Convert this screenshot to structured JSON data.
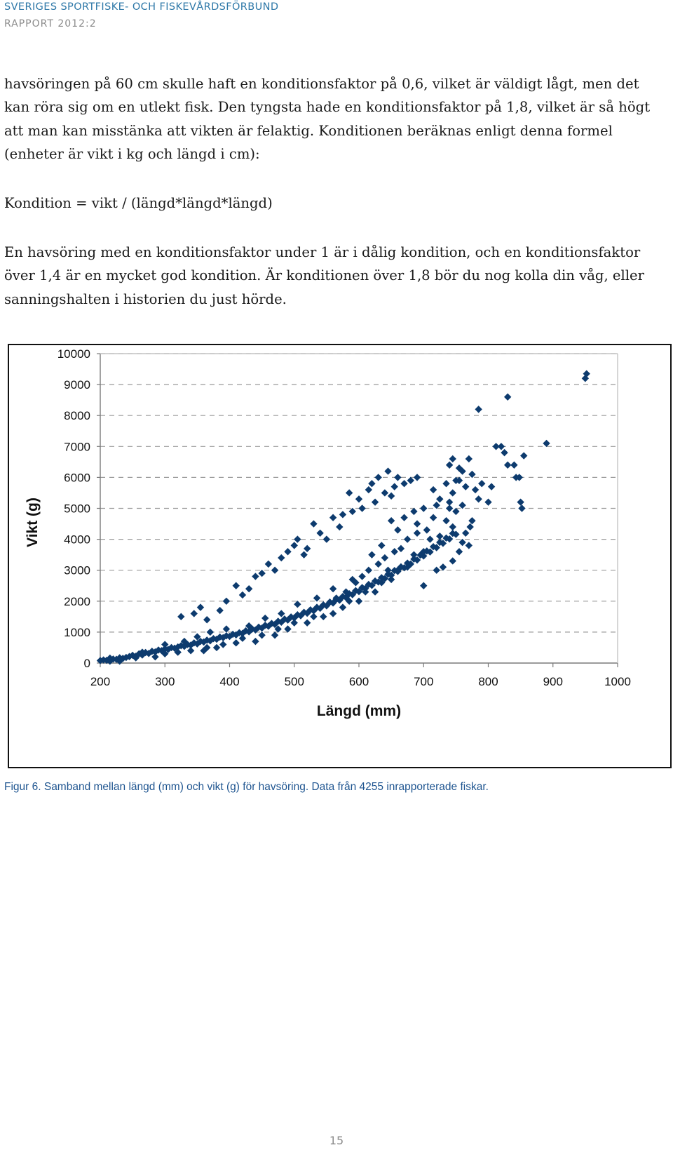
{
  "header": {
    "organization": "SVERIGES SPORTFISKE- OCH FISKEVÅRDSFÖRBUND",
    "report": "RAPPORT 2012:2"
  },
  "body": {
    "paragraph1": "havsöringen på 60 cm skulle haft en konditionsfaktor på 0,6, vilket är väldigt lågt, men det kan röra sig om en utlekt fisk. Den tyngsta hade en konditionsfaktor på 1,8, vilket är så högt att man kan misstänka att vikten är felaktig. Konditionen beräknas enligt denna formel (enheter är vikt i kg och längd i cm):",
    "formula": "Kondition = vikt / (längd*längd*längd)",
    "paragraph2": "En havsöring med en konditionsfaktor under 1 är i dålig kondition, och en konditionsfaktor över 1,4 är en mycket god kondition. Är konditionen över 1,8 bör du nog kolla din våg, eller sanningshalten i historien du just hörde."
  },
  "figure": {
    "caption": "Figur 6. Samband mellan längd (mm) och vikt (g) för havsöring. Data från 4255 inrapporterade fiskar."
  },
  "page_number": "15",
  "chart_data": {
    "type": "scatter",
    "title": "",
    "xlabel": "Längd (mm)",
    "ylabel": "Vikt (g)",
    "xlim": [
      200,
      1000
    ],
    "ylim": [
      0,
      10000
    ],
    "x_ticks": [
      "200",
      "300",
      "400",
      "500",
      "600",
      "700",
      "800",
      "900",
      "1000"
    ],
    "y_ticks": [
      "0",
      "1000",
      "2000",
      "3000",
      "4000",
      "5000",
      "6000",
      "7000",
      "8000",
      "9000",
      "10000"
    ],
    "grid": "horizontal dashed",
    "legend": "none",
    "marker": "diamond",
    "colors": {
      "marker": "#0d3b6e",
      "grid": "#9a9a9a",
      "axis": "#7a7a7a"
    },
    "series": [
      {
        "points": [
          [
            200,
            80
          ],
          [
            205,
            100
          ],
          [
            210,
            90
          ],
          [
            215,
            160
          ],
          [
            220,
            130
          ],
          [
            225,
            120
          ],
          [
            230,
            170
          ],
          [
            235,
            150
          ],
          [
            240,
            180
          ],
          [
            245,
            210
          ],
          [
            250,
            250
          ],
          [
            255,
            220
          ],
          [
            260,
            300
          ],
          [
            265,
            260
          ],
          [
            270,
            340
          ],
          [
            275,
            310
          ],
          [
            280,
            380
          ],
          [
            285,
            360
          ],
          [
            290,
            420
          ],
          [
            295,
            400
          ],
          [
            300,
            460
          ],
          [
            305,
            440
          ],
          [
            310,
            500
          ],
          [
            315,
            480
          ],
          [
            320,
            520
          ],
          [
            325,
            560
          ],
          [
            330,
            540
          ],
          [
            335,
            600
          ],
          [
            340,
            580
          ],
          [
            345,
            650
          ],
          [
            350,
            620
          ],
          [
            355,
            700
          ],
          [
            360,
            680
          ],
          [
            365,
            740
          ],
          [
            370,
            720
          ],
          [
            375,
            790
          ],
          [
            380,
            770
          ],
          [
            385,
            840
          ],
          [
            390,
            820
          ],
          [
            395,
            880
          ],
          [
            400,
            860
          ],
          [
            405,
            930
          ],
          [
            410,
            910
          ],
          [
            415,
            980
          ],
          [
            420,
            960
          ],
          [
            425,
            1040
          ],
          [
            430,
            1010
          ],
          [
            435,
            1100
          ],
          [
            440,
            1070
          ],
          [
            445,
            1160
          ],
          [
            450,
            1130
          ],
          [
            455,
            1220
          ],
          [
            460,
            1190
          ],
          [
            465,
            1280
          ],
          [
            470,
            1250
          ],
          [
            475,
            1350
          ],
          [
            480,
            1320
          ],
          [
            485,
            1420
          ],
          [
            490,
            1390
          ],
          [
            495,
            1490
          ],
          [
            500,
            1460
          ],
          [
            505,
            1560
          ],
          [
            510,
            1530
          ],
          [
            515,
            1640
          ],
          [
            520,
            1610
          ],
          [
            525,
            1720
          ],
          [
            530,
            1690
          ],
          [
            535,
            1800
          ],
          [
            540,
            1770
          ],
          [
            545,
            1880
          ],
          [
            550,
            1850
          ],
          [
            555,
            1970
          ],
          [
            560,
            1940
          ],
          [
            565,
            2060
          ],
          [
            570,
            2030
          ],
          [
            575,
            2150
          ],
          [
            580,
            2120
          ],
          [
            585,
            2240
          ],
          [
            590,
            2210
          ],
          [
            595,
            2340
          ],
          [
            600,
            2310
          ],
          [
            605,
            2440
          ],
          [
            610,
            2410
          ],
          [
            615,
            2540
          ],
          [
            620,
            2510
          ],
          [
            625,
            2650
          ],
          [
            630,
            2620
          ],
          [
            635,
            2760
          ],
          [
            640,
            2730
          ],
          [
            645,
            2870
          ],
          [
            650,
            2840
          ],
          [
            655,
            2990
          ],
          [
            660,
            2960
          ],
          [
            665,
            3110
          ],
          [
            670,
            3080
          ],
          [
            675,
            3230
          ],
          [
            680,
            3200
          ],
          [
            685,
            3360
          ],
          [
            690,
            3330
          ],
          [
            695,
            3490
          ],
          [
            700,
            3460
          ],
          [
            705,
            3620
          ],
          [
            710,
            3590
          ],
          [
            715,
            3760
          ],
          [
            720,
            3730
          ],
          [
            725,
            3900
          ],
          [
            730,
            3870
          ],
          [
            735,
            4040
          ],
          [
            740,
            4010
          ],
          [
            745,
            4190
          ],
          [
            750,
            4160
          ],
          [
            215,
            60
          ],
          [
            230,
            60
          ],
          [
            255,
            170
          ],
          [
            265,
            350
          ],
          [
            285,
            200
          ],
          [
            300,
            300
          ],
          [
            300,
            600
          ],
          [
            320,
            350
          ],
          [
            330,
            700
          ],
          [
            340,
            400
          ],
          [
            350,
            850
          ],
          [
            360,
            400
          ],
          [
            365,
            500
          ],
          [
            370,
            1000
          ],
          [
            380,
            500
          ],
          [
            390,
            600
          ],
          [
            395,
            1100
          ],
          [
            410,
            650
          ],
          [
            420,
            800
          ],
          [
            430,
            1200
          ],
          [
            440,
            700
          ],
          [
            450,
            900
          ],
          [
            455,
            1450
          ],
          [
            470,
            900
          ],
          [
            475,
            1100
          ],
          [
            480,
            1600
          ],
          [
            490,
            1100
          ],
          [
            500,
            1300
          ],
          [
            505,
            1900
          ],
          [
            520,
            1300
          ],
          [
            530,
            1500
          ],
          [
            535,
            2100
          ],
          [
            545,
            1500
          ],
          [
            560,
            1600
          ],
          [
            560,
            2400
          ],
          [
            575,
            1800
          ],
          [
            585,
            2000
          ],
          [
            590,
            2700
          ],
          [
            600,
            2000
          ],
          [
            610,
            2300
          ],
          [
            615,
            3000
          ],
          [
            625,
            2300
          ],
          [
            635,
            2600
          ],
          [
            640,
            3400
          ],
          [
            650,
            2700
          ],
          [
            660,
            3000
          ],
          [
            665,
            3700
          ],
          [
            675,
            3100
          ],
          [
            685,
            3500
          ],
          [
            690,
            4200
          ],
          [
            700,
            3600
          ],
          [
            710,
            4000
          ],
          [
            715,
            4700
          ],
          [
            725,
            4100
          ],
          [
            735,
            4600
          ],
          [
            740,
            5200
          ],
          [
            745,
            4400
          ],
          [
            750,
            4900
          ],
          [
            325,
            1500
          ],
          [
            345,
            1600
          ],
          [
            355,
            1800
          ],
          [
            365,
            1400
          ],
          [
            385,
            1700
          ],
          [
            395,
            2000
          ],
          [
            410,
            2500
          ],
          [
            420,
            2200
          ],
          [
            430,
            2400
          ],
          [
            440,
            2800
          ],
          [
            450,
            2900
          ],
          [
            460,
            3200
          ],
          [
            470,
            3000
          ],
          [
            480,
            3400
          ],
          [
            490,
            3600
          ],
          [
            500,
            3800
          ],
          [
            505,
            4000
          ],
          [
            515,
            3500
          ],
          [
            520,
            3700
          ],
          [
            530,
            4500
          ],
          [
            540,
            4200
          ],
          [
            550,
            4000
          ],
          [
            560,
            4700
          ],
          [
            570,
            4400
          ],
          [
            575,
            4800
          ],
          [
            585,
            5500
          ],
          [
            590,
            4900
          ],
          [
            600,
            5300
          ],
          [
            605,
            5000
          ],
          [
            615,
            5600
          ],
          [
            620,
            5800
          ],
          [
            625,
            5200
          ],
          [
            630,
            6000
          ],
          [
            640,
            5500
          ],
          [
            645,
            6200
          ],
          [
            650,
            5400
          ],
          [
            655,
            5700
          ],
          [
            660,
            6000
          ],
          [
            670,
            5800
          ],
          [
            680,
            5900
          ],
          [
            690,
            6000
          ],
          [
            565,
            2100
          ],
          [
            580,
            2300
          ],
          [
            595,
            2600
          ],
          [
            605,
            2800
          ],
          [
            620,
            3500
          ],
          [
            630,
            3200
          ],
          [
            635,
            3800
          ],
          [
            645,
            3000
          ],
          [
            650,
            4600
          ],
          [
            655,
            3600
          ],
          [
            660,
            4300
          ],
          [
            670,
            4700
          ],
          [
            675,
            4000
          ],
          [
            685,
            4900
          ],
          [
            690,
            4500
          ],
          [
            700,
            5000
          ],
          [
            705,
            4300
          ],
          [
            715,
            5600
          ],
          [
            720,
            5100
          ],
          [
            725,
            5300
          ],
          [
            735,
            5800
          ],
          [
            740,
            5000
          ],
          [
            745,
            5500
          ],
          [
            750,
            5900
          ],
          [
            755,
            6300
          ],
          [
            760,
            5100
          ],
          [
            765,
            5700
          ],
          [
            770,
            6600
          ],
          [
            775,
            6100
          ],
          [
            780,
            5600
          ],
          [
            785,
            5300
          ],
          [
            790,
            5800
          ],
          [
            800,
            5200
          ],
          [
            805,
            5700
          ],
          [
            812,
            7000
          ],
          [
            820,
            7000
          ],
          [
            825,
            6800
          ],
          [
            830,
            6400
          ],
          [
            840,
            6400
          ],
          [
            843,
            6000
          ],
          [
            848,
            6000
          ],
          [
            850,
            5200
          ],
          [
            852,
            5000
          ],
          [
            855,
            6700
          ],
          [
            890,
            7100
          ],
          [
            740,
            6400
          ],
          [
            745,
            6600
          ],
          [
            755,
            5900
          ],
          [
            760,
            6200
          ],
          [
            700,
            2500
          ],
          [
            720,
            3000
          ],
          [
            730,
            3100
          ],
          [
            745,
            3300
          ],
          [
            755,
            3600
          ],
          [
            760,
            3900
          ],
          [
            765,
            4200
          ],
          [
            770,
            3800
          ],
          [
            772,
            4400
          ],
          [
            775,
            4600
          ],
          [
            785,
            8200
          ],
          [
            830,
            8600
          ],
          [
            950,
            9200
          ],
          [
            952,
            9350
          ]
        ]
      }
    ]
  }
}
